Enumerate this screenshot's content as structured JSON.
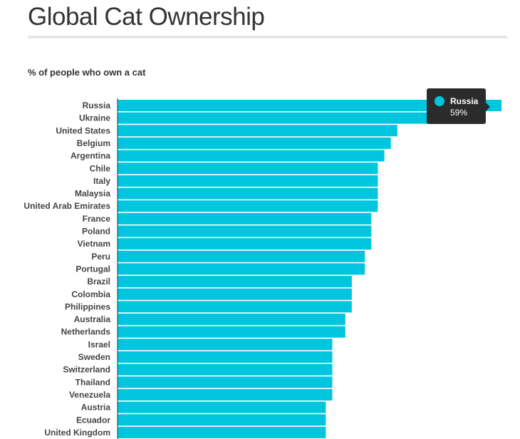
{
  "title": "Global Cat Ownership",
  "chart_data": {
    "type": "bar",
    "orientation": "horizontal",
    "title": "Global Cat Ownership",
    "subtitle": "% of people who own a cat",
    "bar_color": "#00c5df",
    "categories": [
      "Russia",
      "Ukraine",
      "United States",
      "Belgium",
      "Argentina",
      "Chile",
      "Italy",
      "Malaysia",
      "United Arab Emirates",
      "France",
      "Poland",
      "Vietnam",
      "Peru",
      "Portugal",
      "Brazil",
      "Colombia",
      "Philippines",
      "Australia",
      "Netherlands",
      "Israel",
      "Sweden",
      "Switzerland",
      "Thailand",
      "Venezuela",
      "Austria",
      "Ecuador",
      "United Kingdom"
    ],
    "values": [
      59,
      49,
      43,
      42,
      41,
      40,
      40,
      40,
      40,
      39,
      39,
      39,
      38,
      38,
      36,
      36,
      36,
      35,
      35,
      33,
      33,
      33,
      33,
      33,
      32,
      32,
      32
    ],
    "unit": "%",
    "xlim": [
      0,
      59
    ]
  },
  "tooltip": {
    "name": "Russia",
    "value": "59%"
  }
}
